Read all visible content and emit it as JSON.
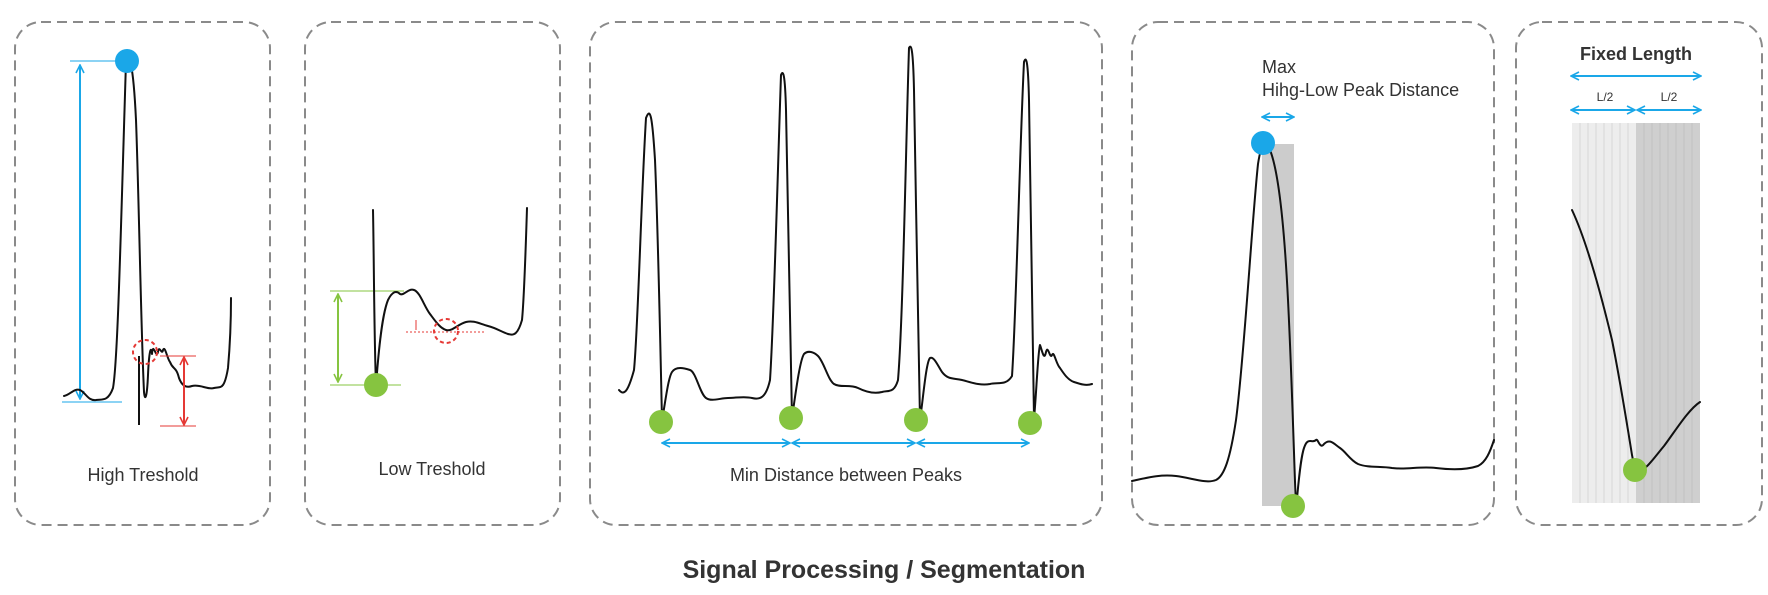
{
  "title": "Signal Processing / Segmentation",
  "panels": {
    "high": {
      "label": "High Treshold"
    },
    "low": {
      "label": "Low Treshold"
    },
    "min_distance": {
      "label": "Min Distance between Peaks"
    },
    "max_hl": {
      "label_line1": "Max",
      "label_line2": "Hihg-Low Peak Distance"
    },
    "fixed": {
      "label": "Fixed Length",
      "half_left": "L/2",
      "half_right": "L/2"
    }
  },
  "colors": {
    "peak_high": "#1aa7e8",
    "peak_low": "#86c440",
    "threshold_red": "#e53935",
    "arrow_blue": "#1aa7e8",
    "arrow_green": "#86c440",
    "frame": "#8a8a8a",
    "window_gray": "#cccccc"
  },
  "icons": {
    "high_marker": "blue-circle",
    "low_marker": "green-circle",
    "noise_marker": "red-dashed-circle"
  }
}
